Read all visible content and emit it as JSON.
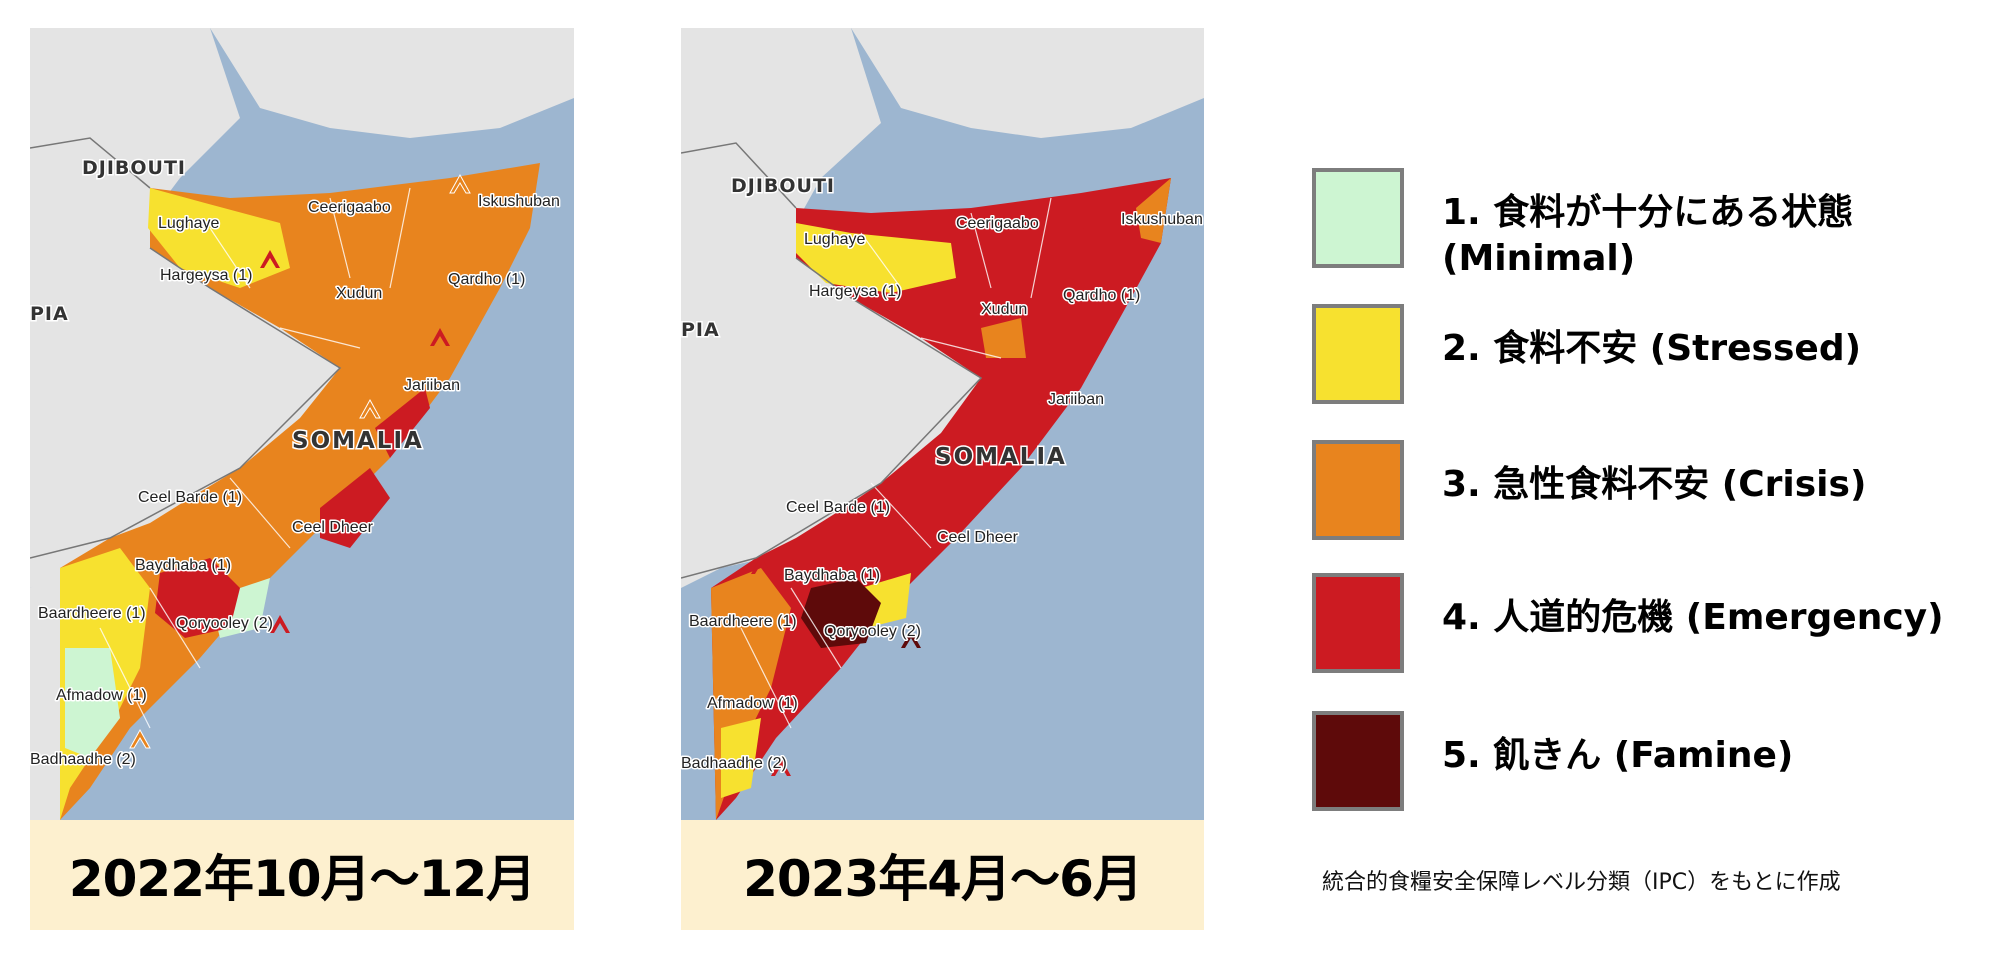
{
  "colors": {
    "sea": "#9db6d0",
    "land_other": "#e4e4e4",
    "minimal": "#cdf5d2",
    "stressed": "#f7e12f",
    "crisis": "#e8841e",
    "emergency": "#cc1b22",
    "famine": "#5e0a0a",
    "caption_bg": "#fdf0cf",
    "swatch_border": "#7d7d7d"
  },
  "maps": [
    {
      "period": "2022年10月〜12月",
      "labels": {
        "djibouti": "DJIBOUTI",
        "ethiopia_fragment": "PIA",
        "somalia": "SOMALIA",
        "lughaye": "Lughaye",
        "ceerigaabo": "Ceerigaabo",
        "iskushuban": "Iskushuban",
        "hargeysa": "Hargeysa (1)",
        "xudun": "Xudun",
        "qardho": "Qardho (1)",
        "jariiban": "Jariiban",
        "ceel_barde": "Ceel Barde (1)",
        "ceel_dheer": "Ceel Dheer",
        "baydhaba": "Baydhaba (1)",
        "baardheere": "Baardheere (1)",
        "qoryooley": "Qoryooley (2)",
        "afmadow": "Afmadow (1)",
        "badhaadhe": "Badhaadhe (2)"
      }
    },
    {
      "period": "2023年4月〜6月",
      "labels": {
        "djibouti": "DJIBOUTI",
        "ethiopia_fragment": "PIA",
        "somalia": "SOMALIA",
        "lughaye": "Lughaye",
        "ceerigaabo": "Ceerigaabo",
        "iskushuban": "Iskushuban",
        "hargeysa": "Hargeysa (1)",
        "xudun": "Xudun",
        "qardho": "Qardho (1)",
        "jariiban": "Jariiban",
        "ceel_barde": "Ceel Barde (1)",
        "ceel_dheer": "Ceel Dheer",
        "baydhaba": "Baydhaba (1)",
        "baardheere": "Baardheere (1)",
        "qoryooley": "Qoryooley (2)",
        "afmadow": "Afmadow (1)",
        "badhaadhe": "Badhaadhe (2)"
      }
    }
  ],
  "legend": {
    "items": [
      {
        "label": "1.  食料が十分にある状態\n(Minimal)",
        "color": "#cdf5d2"
      },
      {
        "label": "2. 食料不安 (Stressed)",
        "color": "#f7e12f"
      },
      {
        "label": "3. 急性食料不安 (Crisis)",
        "color": "#e8841e"
      },
      {
        "label": "4. 人道的危機 (Emergency)",
        "color": "#cc1b22"
      },
      {
        "label": "5. 飢きん (Famine)",
        "color": "#5e0a0a"
      }
    ]
  },
  "source_note": "統合的食糧安全保障レベル分類（IPC）をもとに作成"
}
